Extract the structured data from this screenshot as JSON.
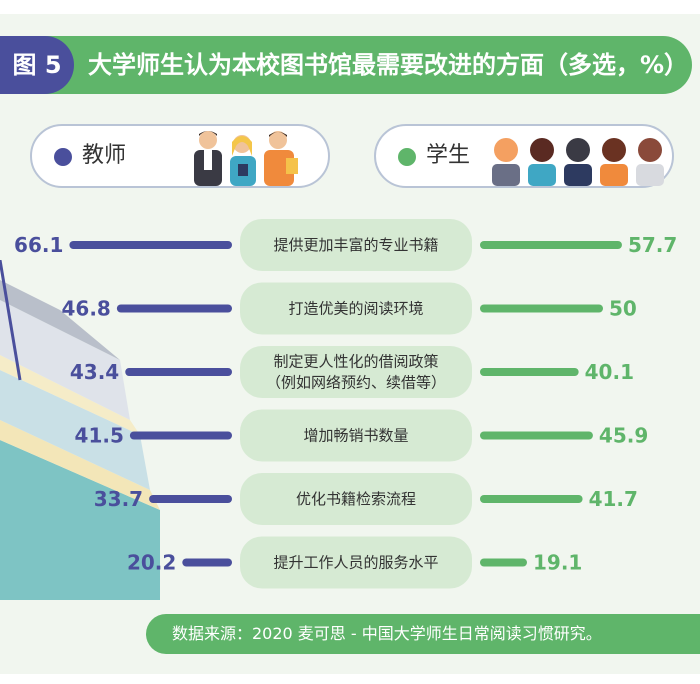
{
  "figure_tag": "图 5",
  "title": "大学师生认为本校图书馆最需要改进的方面（多选，%）",
  "source": "数据来源：2020 麦可思 - 中国大学师生日常阅读习惯研究。",
  "colors": {
    "teacher": "#4a4f9c",
    "student": "#5fb56a",
    "category_bg": "#d6ead3"
  },
  "chart_data": {
    "type": "bar",
    "orientation": "butterfly-horizontal",
    "categories": [
      [
        "提供更加丰富的专业书籍"
      ],
      [
        "打造优美的阅读环境"
      ],
      [
        "制定更人性化的借阅政策",
        "（例如网络预约、续借等）"
      ],
      [
        "增加畅销书数量"
      ],
      [
        "优化书籍检索流程"
      ],
      [
        "提升工作人员的服务水平"
      ]
    ],
    "series": [
      {
        "name": "教师",
        "values": [
          66.1,
          46.8,
          43.4,
          41.5,
          33.7,
          20.2
        ],
        "labels": [
          "66.1",
          "46.8",
          "43.4",
          "41.5",
          "33.7",
          "20.2"
        ]
      },
      {
        "name": "学生",
        "values": [
          57.7,
          50,
          40.1,
          45.9,
          41.7,
          19.1
        ],
        "labels": [
          "57.7",
          "50",
          "40.1",
          "45.9",
          "41.7",
          "19.1"
        ]
      }
    ],
    "legend": "top"
  }
}
